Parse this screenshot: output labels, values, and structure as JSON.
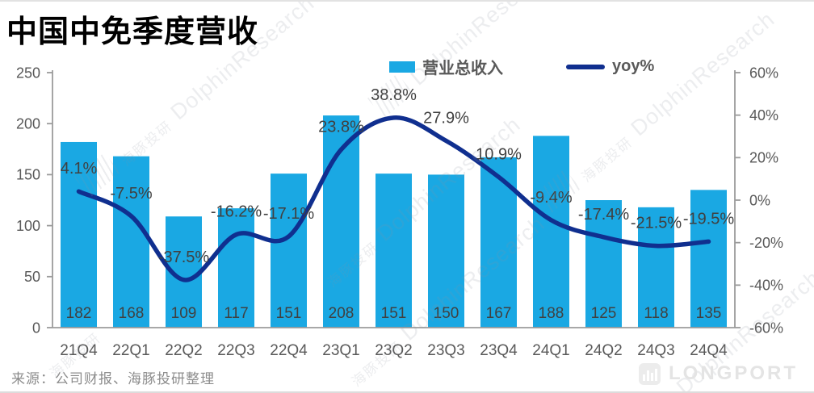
{
  "title": "中国中免季度营收",
  "legend": {
    "bar_label": "营业总收入",
    "line_label": "yoy%"
  },
  "source": "来源：公司财报、海豚投研整理",
  "watermark": {
    "cn": "海豚投研",
    "en": "DolphinResearch",
    "brand": "LONGPORT"
  },
  "colors": {
    "bar": "#1AA8E3",
    "line": "#102F8F",
    "axis_line": "#9B9B9B",
    "axis_text": "#595959",
    "data_label": "#404040"
  },
  "chart_data": {
    "type": "combo-bar-line",
    "title": "中国中免季度营收",
    "grid": false,
    "legend_position": "top",
    "categories": [
      "21Q4",
      "22Q1",
      "22Q2",
      "22Q3",
      "22Q4",
      "23Q1",
      "23Q2",
      "23Q3",
      "23Q4",
      "24Q1",
      "24Q2",
      "24Q3",
      "24Q4"
    ],
    "series": [
      {
        "name": "营业总收入",
        "chart": "bar",
        "axis": "left",
        "color": "#1AA8E3",
        "values": [
          182,
          168,
          109,
          117,
          151,
          208,
          151,
          150,
          167,
          188,
          125,
          118,
          135
        ],
        "labels": [
          "182",
          "168",
          "109",
          "117",
          "151",
          "208",
          "151",
          "150",
          "167",
          "188",
          "125",
          "118",
          "135"
        ]
      },
      {
        "name": "yoy%",
        "chart": "line",
        "axis": "right",
        "color": "#102F8F",
        "values": [
          4.1,
          -7.5,
          -37.5,
          -16.2,
          -17.1,
          23.8,
          38.8,
          27.9,
          10.9,
          -9.4,
          -17.4,
          -21.5,
          -19.5
        ],
        "labels": [
          "4.1%",
          "-7.5%",
          "-37.5%",
          "-16.2%",
          "-17.1%",
          "23.8%",
          "38.8%",
          "27.9%",
          "10.9%",
          "-9.4%",
          "-17.4%",
          "-21.5%",
          "-19.5%"
        ]
      }
    ],
    "axes": {
      "left": {
        "range": [
          0,
          250
        ],
        "tick_labels": [
          "250",
          "200",
          "150",
          "100",
          "50",
          "0"
        ]
      },
      "right": {
        "range": [
          -60,
          60
        ],
        "tick_labels": [
          "60%",
          "40%",
          "20%",
          "0%",
          "-20%",
          "-40%",
          "-60%"
        ]
      }
    }
  }
}
